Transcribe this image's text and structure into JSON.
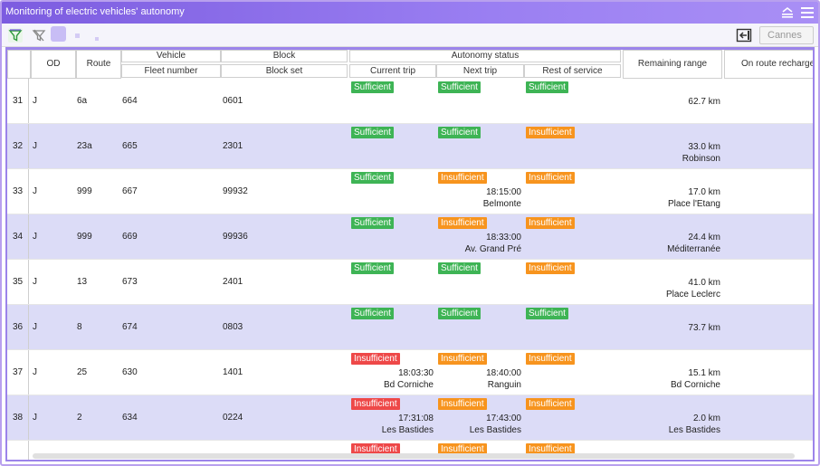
{
  "window": {
    "title": "Monitoring of electric vehicles' autonomy"
  },
  "toolbar": {
    "city": "Cannes"
  },
  "headers": {
    "od": "OD",
    "route": "Route",
    "vehicle": "Vehicle",
    "fleet_number": "Fleet number",
    "block": "Block",
    "block_set": "Block set",
    "autonomy_status": "Autonomy status",
    "current_trip": "Current trip",
    "next_trip": "Next trip",
    "rest_of_service": "Rest of service",
    "remaining_range": "Remaining range",
    "on_route_recharge": "On route recharge"
  },
  "status_colors": {
    "Sufficient": "#3eb455",
    "Insufficient": "#f7941e",
    "Critical": "#ee4848"
  },
  "rows": [
    {
      "num": "31",
      "od": "J",
      "route": "6a",
      "fleet": "664",
      "block": "0601",
      "current": {
        "label": "Sufficient",
        "level": "ok",
        "time": "",
        "place": ""
      },
      "next": {
        "label": "Sufficient",
        "level": "ok",
        "time": "",
        "place": ""
      },
      "rest": {
        "label": "Sufficient",
        "level": "ok"
      },
      "range": "62.7 km",
      "range_place": ""
    },
    {
      "num": "32",
      "od": "J",
      "route": "23a",
      "fleet": "665",
      "block": "2301",
      "current": {
        "label": "Sufficient",
        "level": "ok",
        "time": "",
        "place": ""
      },
      "next": {
        "label": "Sufficient",
        "level": "ok",
        "time": "",
        "place": ""
      },
      "rest": {
        "label": "Insufficient",
        "level": "warn"
      },
      "range": "33.0 km",
      "range_place": "Robinson"
    },
    {
      "num": "33",
      "od": "J",
      "route": "999",
      "fleet": "667",
      "block": "99932",
      "current": {
        "label": "Sufficient",
        "level": "ok",
        "time": "",
        "place": ""
      },
      "next": {
        "label": "Insufficient",
        "level": "warn",
        "time": "18:15:00",
        "place": "Belmonte"
      },
      "rest": {
        "label": "Insufficient",
        "level": "warn"
      },
      "range": "17.0 km",
      "range_place": "Place l'Etang"
    },
    {
      "num": "34",
      "od": "J",
      "route": "999",
      "fleet": "669",
      "block": "99936",
      "current": {
        "label": "Sufficient",
        "level": "ok",
        "time": "",
        "place": ""
      },
      "next": {
        "label": "Insufficient",
        "level": "warn",
        "time": "18:33:00",
        "place": "Av. Grand Pré"
      },
      "rest": {
        "label": "Insufficient",
        "level": "warn"
      },
      "range": "24.4 km",
      "range_place": "Méditerranée"
    },
    {
      "num": "35",
      "od": "J",
      "route": "13",
      "fleet": "673",
      "block": "2401",
      "current": {
        "label": "Sufficient",
        "level": "ok",
        "time": "",
        "place": ""
      },
      "next": {
        "label": "Sufficient",
        "level": "ok",
        "time": "",
        "place": ""
      },
      "rest": {
        "label": "Insufficient",
        "level": "warn"
      },
      "range": "41.0 km",
      "range_place": "Place Leclerc"
    },
    {
      "num": "36",
      "od": "J",
      "route": "8",
      "fleet": "674",
      "block": "0803",
      "current": {
        "label": "Sufficient",
        "level": "ok",
        "time": "",
        "place": ""
      },
      "next": {
        "label": "Sufficient",
        "level": "ok",
        "time": "",
        "place": ""
      },
      "rest": {
        "label": "Sufficient",
        "level": "ok"
      },
      "range": "73.7 km",
      "range_place": ""
    },
    {
      "num": "37",
      "od": "J",
      "route": "25",
      "fleet": "630",
      "block": "1401",
      "current": {
        "label": "Insufficient",
        "level": "crit",
        "time": "18:03:30",
        "place": "Bd Corniche"
      },
      "next": {
        "label": "Insufficient",
        "level": "warn",
        "time": "18:40:00",
        "place": "Ranguin"
      },
      "rest": {
        "label": "Insufficient",
        "level": "warn"
      },
      "range": "15.1 km",
      "range_place": "Bd Corniche"
    },
    {
      "num": "38",
      "od": "J",
      "route": "2",
      "fleet": "634",
      "block": "0224",
      "current": {
        "label": "Insufficient",
        "level": "crit",
        "time": "17:31:08",
        "place": "Les Bastides"
      },
      "next": {
        "label": "Insufficient",
        "level": "warn",
        "time": "17:43:00",
        "place": "Les Bastides"
      },
      "rest": {
        "label": "Insufficient",
        "level": "warn"
      },
      "range": "2.0 km",
      "range_place": "Les Bastides"
    },
    {
      "num": "",
      "od": "",
      "route": "",
      "fleet": "",
      "block": "",
      "current": {
        "label": "Insufficient",
        "level": "crit",
        "time": "",
        "place": ""
      },
      "next": {
        "label": "Insufficient",
        "level": "warn",
        "time": "",
        "place": ""
      },
      "rest": {
        "label": "Insufficient",
        "level": "warn"
      },
      "range": "",
      "range_place": ""
    }
  ]
}
